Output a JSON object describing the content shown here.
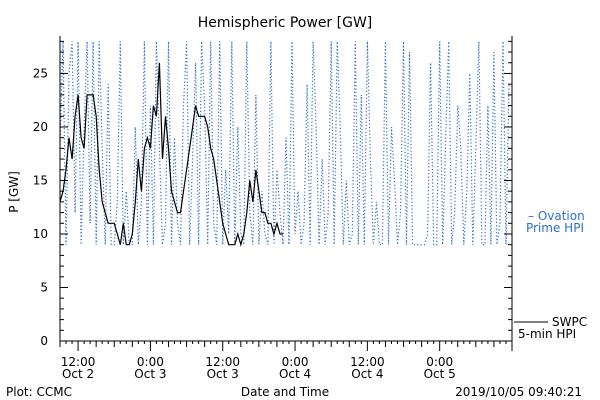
{
  "chart_data": {
    "type": "line",
    "title": "Hemispheric Power [GW]",
    "ylabel": "P [GW]",
    "xlabel": "Date and Time",
    "ylim": [
      0,
      28.5
    ],
    "y_ticks": [
      0,
      5,
      10,
      15,
      20,
      25
    ],
    "x_unit": "hours since 2019-10-02 00:00 UTC",
    "xlim": [
      9,
      84
    ],
    "x_ticks": [
      {
        "x": 12,
        "time": "12:00",
        "date": "Oct 2"
      },
      {
        "x": 24,
        "time": "0:00",
        "date": "Oct 3"
      },
      {
        "x": 36,
        "time": "12:00",
        "date": "Oct 3"
      },
      {
        "x": 48,
        "time": "0:00",
        "date": "Oct 4"
      },
      {
        "x": 60,
        "time": "12:00",
        "date": "Oct 4"
      },
      {
        "x": 72,
        "time": "0:00",
        "date": "Oct 5"
      }
    ],
    "grid": false,
    "series": [
      {
        "name": "SWPC 5-min HPI",
        "color": "#000000",
        "style": "solid",
        "legend_lines": [
          "SWPC",
          "5-min HPI"
        ],
        "x": [
          9.0,
          9.5,
          10.0,
          10.5,
          11.0,
          11.5,
          12.0,
          12.5,
          13.0,
          13.5,
          14.0,
          14.5,
          15.0,
          15.5,
          16.0,
          16.5,
          17.0,
          17.5,
          18.0,
          18.5,
          19.0,
          19.5,
          20.0,
          20.5,
          21.0,
          21.5,
          22.0,
          22.5,
          23.0,
          23.5,
          24.0,
          24.5,
          25.0,
          25.5,
          26.0,
          26.5,
          27.0,
          27.5,
          28.0,
          28.5,
          29.0,
          29.5,
          30.0,
          30.5,
          31.0,
          31.5,
          32.0,
          32.5,
          33.0,
          33.5,
          34.0,
          34.5,
          35.0,
          35.5,
          36.0,
          36.5,
          37.0,
          37.5,
          38.0,
          38.5,
          39.0,
          39.5,
          40.0,
          40.5,
          41.0,
          41.5,
          42.0,
          42.5,
          43.0,
          43.5,
          44.0,
          44.5,
          45.0,
          45.5,
          46.0
        ],
        "y": [
          13,
          14,
          16,
          19,
          17,
          21,
          23,
          19,
          18,
          23,
          23,
          23,
          21,
          16,
          13,
          12,
          11,
          11,
          11,
          10,
          9,
          11,
          9,
          9,
          10,
          13,
          17,
          14,
          18,
          19,
          18,
          22,
          21,
          26,
          17,
          21,
          18,
          14,
          13,
          12,
          12,
          14,
          16,
          18,
          20,
          22,
          21,
          21,
          21,
          20,
          18,
          17,
          15,
          13,
          11,
          10,
          9,
          9,
          9,
          10,
          9,
          10,
          12,
          15,
          13,
          16,
          14,
          12,
          12,
          11,
          11,
          10,
          11,
          10,
          10
        ]
      },
      {
        "name": "Ovation Prime HPI",
        "color": "#2e6fd0",
        "style": "dotted",
        "legend_lines": [
          "– Ovation",
          "Prime HPI"
        ],
        "x": [
          9,
          9.5,
          10,
          10.5,
          11,
          11.5,
          12,
          12.5,
          13,
          13.5,
          14,
          14.5,
          15,
          15.5,
          16,
          16.5,
          17,
          17.5,
          18,
          18.5,
          19,
          19.5,
          20,
          20.5,
          21,
          21.5,
          22,
          22.5,
          23,
          23.5,
          24,
          24.5,
          25,
          25.5,
          26,
          26.5,
          27,
          27.5,
          28,
          28.5,
          29,
          29.5,
          30,
          30.5,
          31,
          31.5,
          32,
          32.5,
          33,
          33.5,
          34,
          34.5,
          35,
          35.5,
          36,
          36.5,
          37,
          37.5,
          38,
          38.5,
          39,
          39.5,
          40,
          40.5,
          41,
          41.5,
          42,
          42.5,
          43,
          43.5,
          44,
          44.5,
          45,
          45.5,
          46,
          46.5,
          47,
          47.5,
          48,
          48.5,
          49,
          49.5,
          50,
          50.5,
          51,
          51.5,
          52,
          52.5,
          53,
          53.5,
          54,
          54.5,
          55,
          55.5,
          56,
          56.5,
          57,
          57.5,
          58,
          58.5,
          59,
          59.5,
          60,
          60.5,
          61,
          61.5,
          62,
          62.5,
          63,
          63.5,
          64,
          64.5,
          65,
          65.5,
          66,
          66.5,
          67,
          67.5,
          68,
          68.5,
          69,
          69.5,
          70,
          70.5,
          71,
          71.5,
          72,
          72.5,
          73,
          73.5,
          74,
          74.5,
          75,
          75.5,
          76,
          76.5,
          77,
          77.5,
          78,
          78.5,
          79,
          79.5,
          80,
          80.5,
          81,
          81.5,
          82,
          82.5,
          83,
          83.5
        ],
        "y": [
          18,
          28,
          9,
          25,
          28,
          12,
          28,
          9,
          20,
          28,
          11,
          28,
          9,
          28,
          18,
          9,
          24,
          9,
          9,
          13,
          28,
          9,
          14,
          9,
          9,
          20,
          9,
          13,
          28,
          9,
          22,
          9,
          28,
          18,
          9,
          11,
          28,
          9,
          19,
          11,
          9,
          22,
          28,
          9,
          17,
          26,
          9,
          28,
          22,
          9,
          28,
          11,
          9,
          28,
          9,
          16,
          10,
          28,
          9,
          20,
          10,
          9,
          28,
          12,
          9,
          23,
          9,
          14,
          10,
          9,
          28,
          9,
          16,
          12,
          9,
          19,
          9,
          28,
          10,
          14,
          9,
          11,
          24,
          9,
          28,
          20,
          9,
          17,
          9,
          12,
          28,
          9,
          28,
          20,
          9,
          15,
          9,
          10,
          28,
          9,
          23,
          9,
          28,
          17,
          9,
          13,
          9,
          9,
          28,
          9,
          20,
          15,
          9,
          12,
          28,
          9,
          27,
          9,
          9,
          9,
          9,
          9,
          10,
          26,
          9,
          9,
          28,
          9,
          19,
          28,
          9,
          12,
          22,
          18,
          9,
          14,
          25,
          9,
          18,
          28,
          9,
          9,
          22,
          9,
          27,
          9,
          11,
          28,
          9,
          24
        ]
      }
    ]
  },
  "footer": {
    "plot_credit": "Plot: CCMC",
    "timestamp": "2019/10/05 09:40:21"
  }
}
